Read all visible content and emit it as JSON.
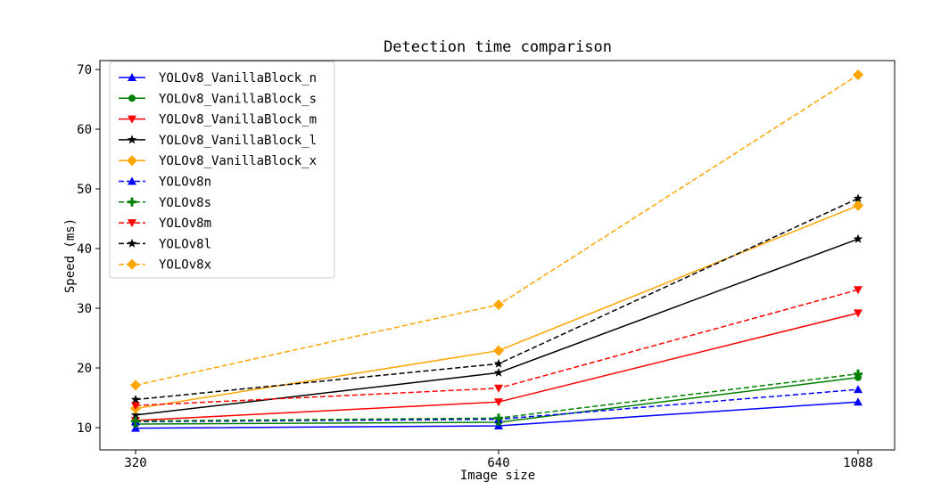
{
  "chart_data": {
    "type": "line",
    "title": "Detection time comparison",
    "xlabel": "Image size",
    "ylabel": "Speed (ms)",
    "x": [
      320,
      640,
      1088
    ],
    "x_tick_labels": [
      "320",
      "640",
      "1088"
    ],
    "y_ticks": [
      10,
      20,
      30,
      40,
      50,
      60,
      70
    ],
    "ylim": [
      5.5,
      73.5
    ],
    "grid": false,
    "legend_position": "top-left",
    "series": [
      {
        "name": "YOLOv8_VanillaBlock_n",
        "values": [
          9.9,
          10.3,
          14.3
        ],
        "color": "#0000ff",
        "dash": "solid",
        "marker": "triangle-up"
      },
      {
        "name": "YOLOv8_VanillaBlock_s",
        "values": [
          10.6,
          10.9,
          18.4
        ],
        "color": "#008000",
        "dash": "solid",
        "marker": "circle"
      },
      {
        "name": "YOLOv8_VanillaBlock_m",
        "values": [
          11.2,
          14.3,
          29.2
        ],
        "color": "#ff0000",
        "dash": "solid",
        "marker": "triangle-down"
      },
      {
        "name": "YOLOv8_VanillaBlock_l",
        "values": [
          12.1,
          19.2,
          41.6
        ],
        "color": "#000000",
        "dash": "solid",
        "marker": "star"
      },
      {
        "name": "YOLOv8_VanillaBlock_x",
        "values": [
          13.2,
          22.9,
          47.2
        ],
        "color": "#ffa500",
        "dash": "solid",
        "marker": "diamond"
      },
      {
        "name": "YOLOv8n",
        "values": [
          11.0,
          11.4,
          16.4
        ],
        "color": "#0000ff",
        "dash": "dashed",
        "marker": "triangle-up"
      },
      {
        "name": "YOLOv8s",
        "values": [
          11.1,
          11.6,
          19.0
        ],
        "color": "#008000",
        "dash": "dashed",
        "marker": "plus"
      },
      {
        "name": "YOLOv8m",
        "values": [
          13.7,
          16.6,
          33.1
        ],
        "color": "#ff0000",
        "dash": "dashed",
        "marker": "triangle-down"
      },
      {
        "name": "YOLOv8l",
        "values": [
          14.7,
          20.7,
          48.4
        ],
        "color": "#000000",
        "dash": "dashed",
        "marker": "star"
      },
      {
        "name": "YOLOv8x",
        "values": [
          17.1,
          30.6,
          69.1
        ],
        "color": "#ffa500",
        "dash": "dashed",
        "marker": "diamond"
      }
    ]
  }
}
